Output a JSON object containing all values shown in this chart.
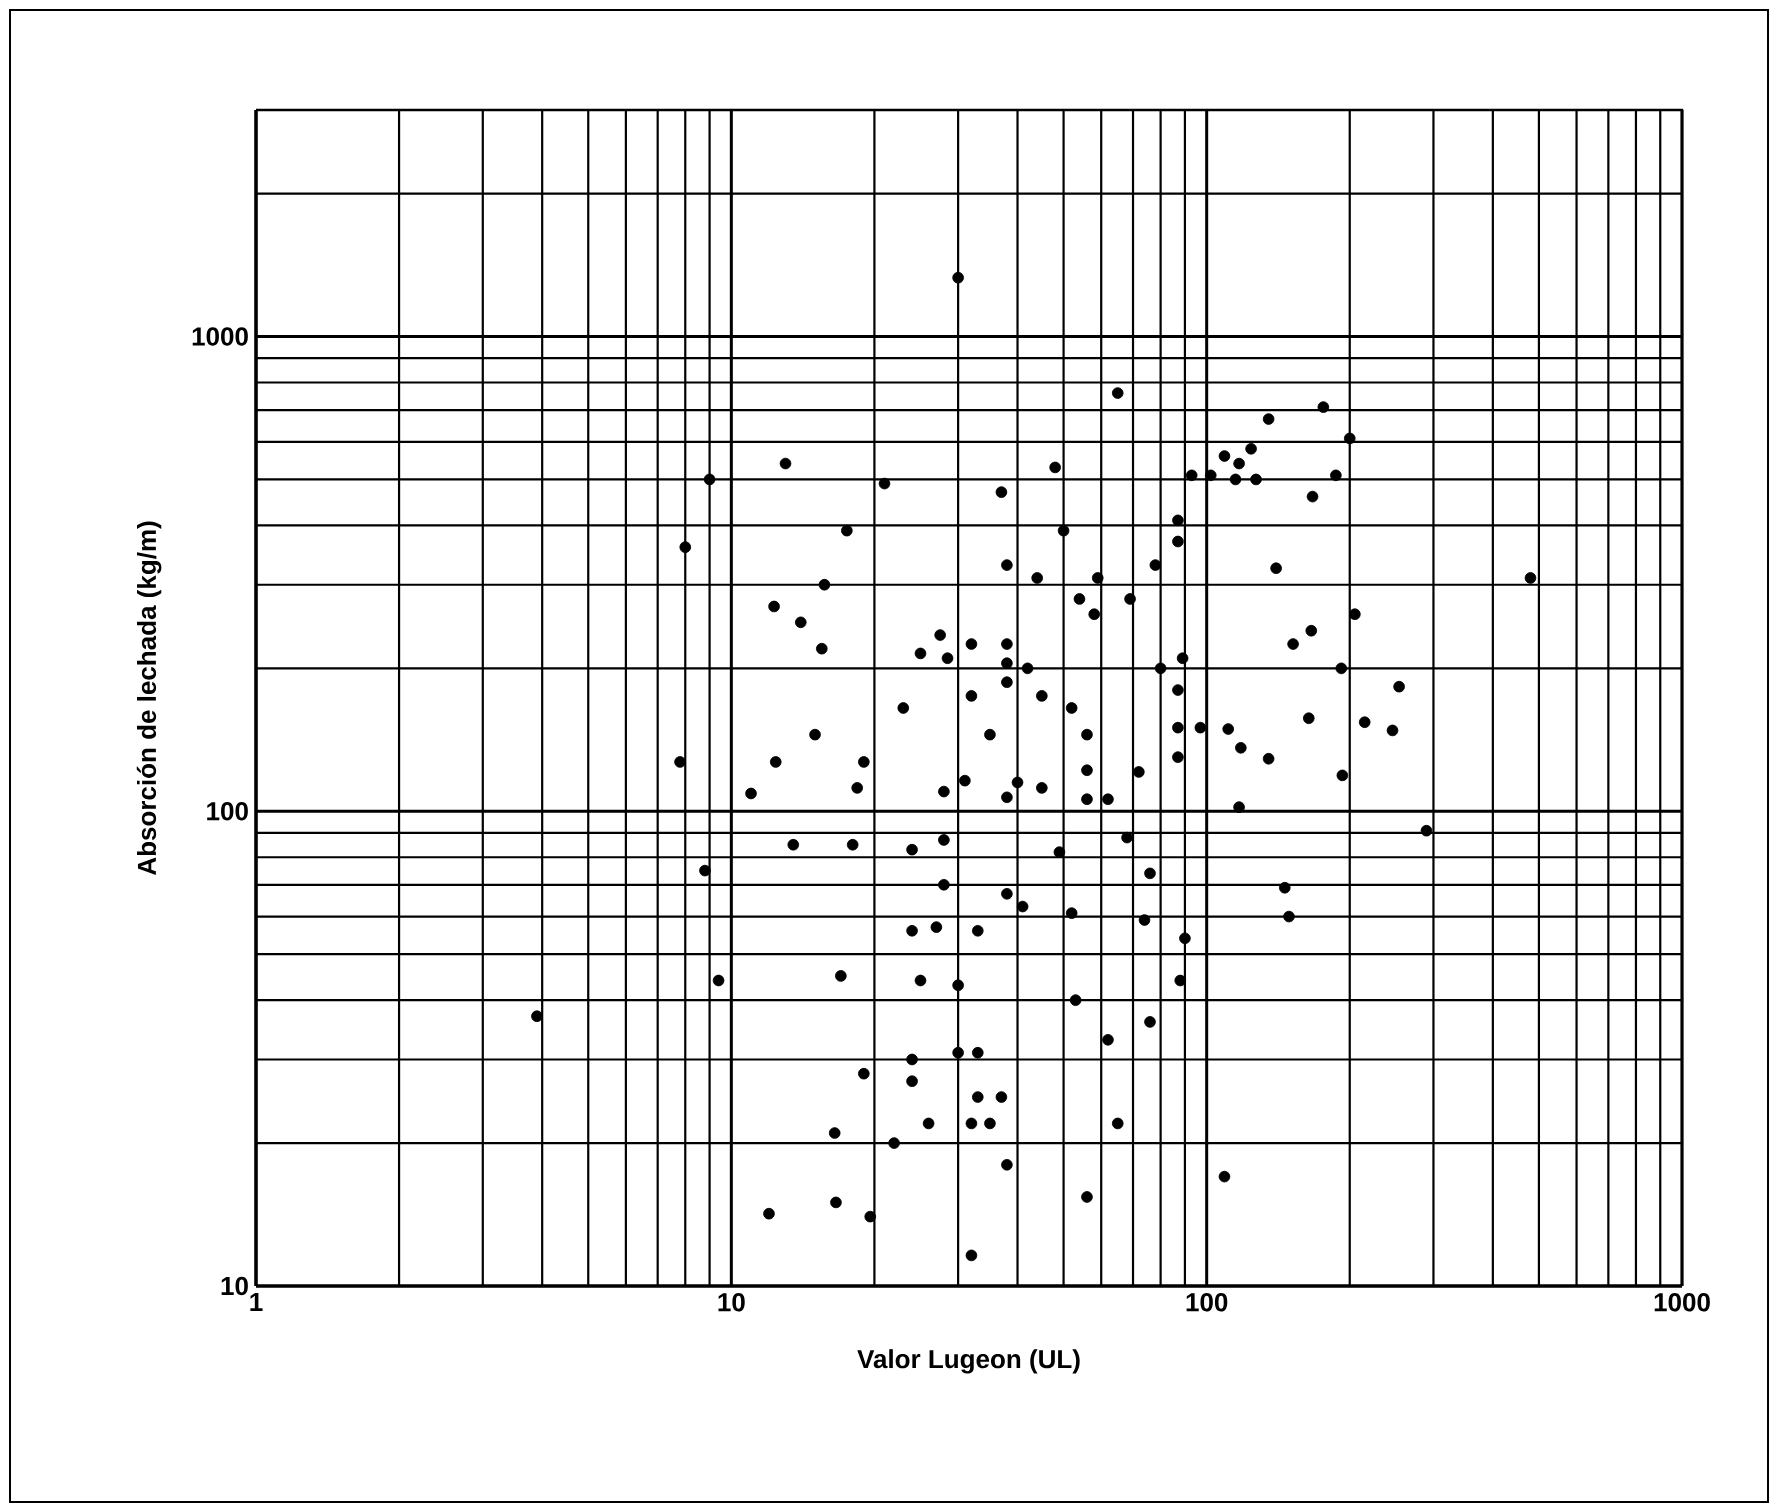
{
  "chart_data": {
    "type": "scatter",
    "xlabel": "Valor Lugeon (UL)",
    "ylabel": "Absorción de lechada (kg/m)",
    "log": "xy",
    "xlim": [
      1,
      1000
    ],
    "ylim": [
      10,
      3000
    ],
    "xticks": [
      1,
      10,
      100,
      1000
    ],
    "yticks": [
      10,
      100,
      1000
    ],
    "grid": true,
    "series": [
      {
        "color": "#000000",
        "x": [
          9,
          8,
          7.8,
          3.9,
          8.8,
          9.4,
          11,
          30,
          65,
          13,
          21,
          48,
          37,
          93,
          102,
          109,
          50,
          87,
          87,
          17.5,
          38,
          44,
          59,
          78,
          15.7,
          12.3,
          54,
          69,
          14,
          58,
          15.5,
          27.5,
          25,
          28.5,
          32,
          38,
          38,
          38,
          42,
          45,
          52,
          32,
          23,
          35,
          56,
          15,
          12.4,
          19,
          56,
          72,
          80,
          89,
          87,
          87,
          97,
          87,
          176,
          135,
          200,
          124,
          117,
          127,
          115,
          187,
          167,
          140,
          480,
          205,
          166,
          152,
          192,
          254,
          111,
          164,
          215,
          246,
          118,
          135,
          193,
          18.4,
          31,
          28,
          40,
          38,
          45,
          56,
          62,
          13.5,
          18,
          24,
          28,
          49,
          68,
          76,
          28,
          38,
          41,
          52,
          74,
          90,
          24,
          27,
          33,
          88,
          17,
          25,
          30,
          53,
          76,
          62,
          30,
          33,
          24,
          24,
          19,
          33,
          37,
          35,
          32,
          26,
          16.5,
          22,
          65,
          38,
          56,
          16.6,
          12,
          19.6,
          32,
          109,
          117,
          290,
          146,
          149
        ],
        "values": [
          500,
          360,
          127,
          37,
          75,
          44,
          109,
          1330,
          760,
          540,
          490,
          530,
          470,
          510,
          510,
          560,
          390,
          410,
          370,
          390,
          330,
          310,
          310,
          330,
          300,
          270,
          280,
          280,
          250,
          260,
          220,
          235,
          215,
          210,
          225,
          225,
          205,
          187,
          200,
          175,
          165,
          175,
          165,
          145,
          145,
          145,
          127,
          127,
          122,
          121,
          200,
          210,
          180,
          150,
          150,
          130,
          710,
          670,
          610,
          580,
          540,
          500,
          500,
          510,
          460,
          325,
          310,
          260,
          240,
          225,
          200,
          183,
          149,
          157,
          154,
          148,
          136,
          129,
          119,
          112,
          116,
          110,
          115,
          107,
          112,
          106,
          106,
          85,
          85,
          83,
          87,
          82,
          88,
          74,
          70,
          67,
          63,
          61,
          59,
          54,
          56,
          57,
          56,
          44,
          45,
          44,
          43,
          40,
          36,
          33,
          31,
          31,
          30,
          27,
          28,
          25,
          25,
          22,
          22,
          22,
          21,
          20,
          22,
          18,
          15.4,
          15,
          14.2,
          14,
          11.6,
          17,
          102,
          91,
          69,
          60
        ]
      }
    ]
  }
}
